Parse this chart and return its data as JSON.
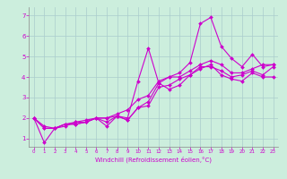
{
  "title": "",
  "xlabel": "Windchill (Refroidissement éolien,°C)",
  "background_color": "#cceedd",
  "grid_color": "#aacccc",
  "line_color": "#cc00cc",
  "xlim": [
    -0.5,
    23.5
  ],
  "ylim": [
    0.6,
    7.4
  ],
  "xticks": [
    0,
    1,
    2,
    3,
    4,
    5,
    6,
    7,
    8,
    9,
    10,
    11,
    12,
    13,
    14,
    15,
    16,
    17,
    18,
    19,
    20,
    21,
    22,
    23
  ],
  "yticks": [
    1,
    2,
    3,
    4,
    5,
    6,
    7
  ],
  "line1_x": [
    0,
    1,
    2,
    3,
    4,
    5,
    6,
    7,
    8,
    9,
    10,
    11,
    12,
    13,
    14,
    15,
    16,
    17,
    18,
    19,
    20,
    21,
    22,
    23
  ],
  "line1_y": [
    2.0,
    1.5,
    1.5,
    1.7,
    1.7,
    1.8,
    2.0,
    2.0,
    2.1,
    2.0,
    3.8,
    5.4,
    3.7,
    4.0,
    4.2,
    4.7,
    6.6,
    6.9,
    5.5,
    4.9,
    4.5,
    5.1,
    4.5,
    4.6
  ],
  "line2_x": [
    0,
    1,
    2,
    3,
    4,
    5,
    6,
    7,
    8,
    9,
    10,
    11,
    12,
    13,
    14,
    15,
    16,
    17,
    18,
    19,
    20,
    21,
    22,
    23
  ],
  "line2_y": [
    2.0,
    1.5,
    1.5,
    1.7,
    1.7,
    1.8,
    2.0,
    1.6,
    2.1,
    1.9,
    2.5,
    2.8,
    3.7,
    3.4,
    3.6,
    4.1,
    4.4,
    4.6,
    4.1,
    3.9,
    3.8,
    4.2,
    4.0,
    4.0
  ],
  "line3_x": [
    0,
    1,
    2,
    3,
    4,
    5,
    6,
    7,
    8,
    9,
    10,
    11,
    12,
    13,
    14,
    15,
    16,
    17,
    18,
    19,
    20,
    21,
    22,
    23
  ],
  "line3_y": [
    2.0,
    1.6,
    1.5,
    1.7,
    1.8,
    1.9,
    2.0,
    2.0,
    2.2,
    2.4,
    2.9,
    3.1,
    3.8,
    4.0,
    4.0,
    4.3,
    4.6,
    4.8,
    4.6,
    4.2,
    4.2,
    4.4,
    4.6,
    4.6
  ],
  "line4_x": [
    0,
    1,
    2,
    3,
    4,
    5,
    6,
    7,
    8,
    9,
    10,
    11,
    12,
    13,
    14,
    15,
    16,
    17,
    18,
    19,
    20,
    21,
    22,
    23
  ],
  "line4_y": [
    2.0,
    0.8,
    1.5,
    1.6,
    1.8,
    1.8,
    2.0,
    1.8,
    2.1,
    1.9,
    2.5,
    2.6,
    3.5,
    3.6,
    3.9,
    4.1,
    4.5,
    4.5,
    4.3,
    4.0,
    4.1,
    4.3,
    4.1,
    4.5
  ]
}
